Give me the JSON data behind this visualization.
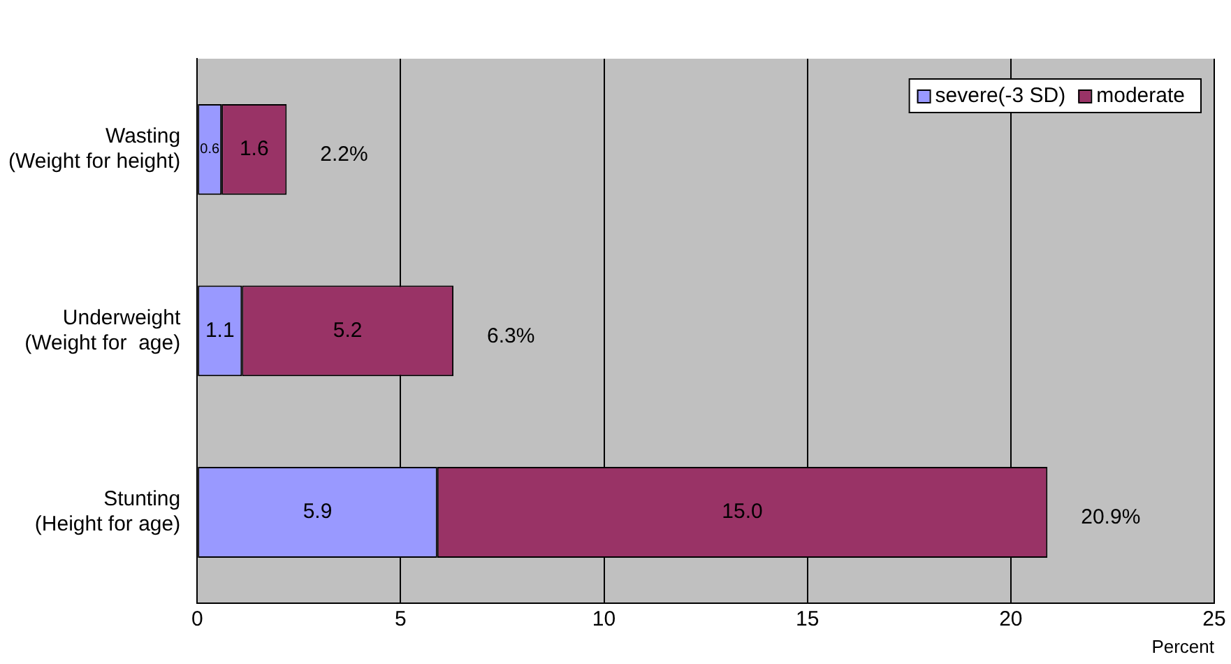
{
  "chart_data": {
    "type": "bar",
    "orientation": "horizontal",
    "stacked": true,
    "categories": [
      "Wasting\n(Weight for height)",
      "Underweight\n(Weight for  age)",
      "Stunting\n(Height for age)"
    ],
    "series": [
      {
        "name": "severe(-3 SD)",
        "color": "#9999ff",
        "values": [
          0.6,
          1.1,
          5.9
        ],
        "value_labels": [
          "0.6",
          "1.1",
          "5.9"
        ]
      },
      {
        "name": "moderate",
        "color": "#993366",
        "values": [
          1.6,
          5.2,
          15.0
        ],
        "value_labels": [
          "1.6",
          "5.2",
          "15.0"
        ]
      }
    ],
    "totals": [
      "2.2%",
      "6.3%",
      "20.9%"
    ],
    "xlabel": "Percent",
    "xlim": [
      0,
      25
    ],
    "xticks": [
      0,
      5,
      10,
      15,
      20,
      25
    ],
    "grid": "x",
    "legend": "top right"
  }
}
